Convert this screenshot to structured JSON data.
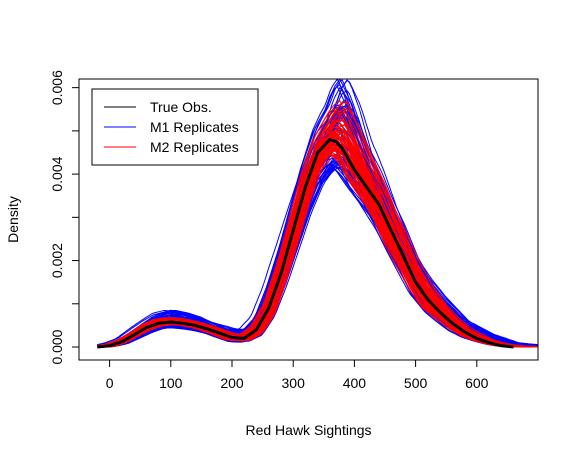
{
  "chart_data": {
    "type": "line",
    "title": "",
    "xlabel": "Red Hawk Sightings",
    "ylabel": "Density",
    "xlim": [
      -50,
      700
    ],
    "ylim": [
      -0.0003,
      0.0062
    ],
    "x_ticks": [
      0,
      100,
      200,
      300,
      400,
      500,
      600
    ],
    "x_tick_labels": [
      "0",
      "100",
      "200",
      "300",
      "400",
      "500",
      "600"
    ],
    "y_ticks": [
      0.0,
      0.002,
      0.004,
      0.006
    ],
    "y_tick_labels": [
      "0.000",
      "0.002",
      "0.004",
      "0.006"
    ],
    "y_minor_ticks": [
      0.001,
      0.003,
      0.005
    ],
    "grid": false,
    "legend": {
      "position": "top-left",
      "entries": [
        {
          "name": "True Obs.",
          "color": "#000000"
        },
        {
          "name": "M1 Replicates",
          "color": "#0000ff"
        },
        {
          "name": "M2 Replicates",
          "color": "#ff0000"
        }
      ]
    },
    "series": [
      {
        "name": "True Obs.",
        "color": "#000000",
        "x": [
          -20,
          0,
          20,
          40,
          60,
          80,
          100,
          120,
          140,
          160,
          180,
          200,
          220,
          240,
          260,
          280,
          300,
          320,
          340,
          360,
          370,
          380,
          400,
          420,
          440,
          460,
          480,
          500,
          520,
          540,
          560,
          580,
          600,
          620,
          640,
          660
        ],
        "y": [
          0.0,
          3e-05,
          0.00012,
          0.00028,
          0.00045,
          0.00055,
          0.00058,
          0.00055,
          0.0005,
          0.00042,
          0.00032,
          0.00022,
          0.0002,
          0.0004,
          0.0009,
          0.0017,
          0.0027,
          0.0037,
          0.0045,
          0.0048,
          0.00475,
          0.0046,
          0.0041,
          0.0037,
          0.0033,
          0.0027,
          0.0021,
          0.0015,
          0.0011,
          0.0008,
          0.00055,
          0.00035,
          0.0002,
          0.0001,
          3e-05,
          0.0
        ]
      },
      {
        "name": "M1 Replicates",
        "color": "#0000ff",
        "replicates": 60,
        "x": [
          -20,
          0,
          20,
          40,
          60,
          80,
          100,
          120,
          140,
          160,
          180,
          200,
          220,
          240,
          260,
          280,
          300,
          320,
          340,
          360,
          370,
          380,
          400,
          420,
          440,
          460,
          480,
          500,
          520,
          540,
          560,
          580,
          600,
          620,
          640,
          660,
          680,
          700
        ],
        "y_low": [
          0.0,
          0.0,
          6e-05,
          0.00018,
          0.0003,
          0.00038,
          0.0004,
          0.00038,
          0.00034,
          0.00028,
          0.00018,
          8e-05,
          8e-05,
          0.0002,
          0.0006,
          0.0013,
          0.0021,
          0.0029,
          0.0035,
          0.0038,
          0.0038,
          0.0036,
          0.0032,
          0.0029,
          0.0025,
          0.002,
          0.0015,
          0.001,
          0.0007,
          0.0005,
          0.0003,
          0.00018,
          0.0001,
          4e-05,
          0.0,
          0.0,
          0.0,
          0.0
        ],
        "y_high": [
          4e-05,
          0.0001,
          0.0002,
          0.0004,
          0.0006,
          0.00078,
          0.00085,
          0.0008,
          0.00072,
          0.0006,
          0.0005,
          0.00042,
          0.0004,
          0.0007,
          0.0014,
          0.0023,
          0.0033,
          0.0043,
          0.0051,
          0.0056,
          0.006,
          0.0062,
          0.0056,
          0.0047,
          0.0041,
          0.0034,
          0.0028,
          0.0021,
          0.0016,
          0.0012,
          0.0009,
          0.0006,
          0.00045,
          0.0003,
          0.0002,
          0.0001,
          7e-05,
          5e-05
        ]
      },
      {
        "name": "M2 Replicates",
        "color": "#ff0000",
        "replicates": 60,
        "x": [
          -20,
          0,
          20,
          40,
          60,
          80,
          100,
          120,
          140,
          160,
          180,
          200,
          220,
          240,
          260,
          280,
          300,
          320,
          340,
          360,
          370,
          380,
          400,
          420,
          440,
          460,
          480,
          500,
          520,
          540,
          560,
          580,
          600,
          620,
          640,
          660,
          680,
          700
        ],
        "y_low": [
          0.0,
          0.0,
          0.0001,
          0.00024,
          0.00038,
          0.00047,
          0.0005,
          0.00048,
          0.00043,
          0.00035,
          0.00025,
          0.00014,
          0.00012,
          0.00028,
          0.0007,
          0.0015,
          0.0024,
          0.0033,
          0.004,
          0.0043,
          0.0043,
          0.0041,
          0.0036,
          0.0032,
          0.0028,
          0.0022,
          0.0017,
          0.0012,
          0.0008,
          0.0006,
          0.0004,
          0.00024,
          0.00013,
          6e-05,
          1e-05,
          0.0,
          0.0,
          0.0
        ],
        "y_high": [
          2e-05,
          7e-05,
          0.00016,
          0.00033,
          0.00052,
          0.00064,
          0.00068,
          0.00064,
          0.00058,
          0.0005,
          0.0004,
          0.0003,
          0.0003,
          0.00055,
          0.0011,
          0.002,
          0.003,
          0.0041,
          0.0049,
          0.0054,
          0.0056,
          0.0057,
          0.0051,
          0.0044,
          0.0038,
          0.0031,
          0.0025,
          0.0019,
          0.0014,
          0.001,
          0.0007,
          0.00045,
          0.0003,
          0.00017,
          9e-05,
          4e-05,
          2e-05,
          1e-05
        ]
      }
    ]
  }
}
